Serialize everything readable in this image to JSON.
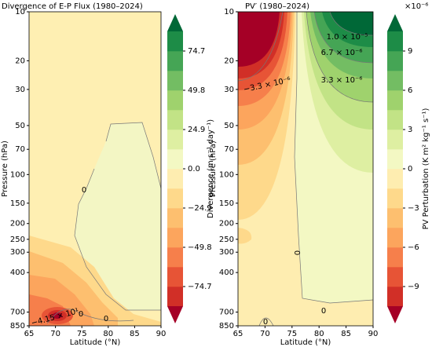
{
  "chart_data": [
    {
      "type": "contour",
      "title": "Divergence of E-P Flux (1980–2024)",
      "xlabel": "Latitude (°N)",
      "ylabel": "Pressure (hPa)",
      "xlim": [
        65,
        90
      ],
      "xticks": [
        65,
        70,
        75,
        80,
        85,
        90
      ],
      "ylim": [
        10,
        850
      ],
      "log_y": true,
      "invert_y": true,
      "yticks": [
        10,
        20,
        30,
        50,
        70,
        100,
        150,
        200,
        250,
        300,
        400,
        700,
        850
      ],
      "contour_labels": [
        "0",
        "−4.15 × 10¹",
        "0",
        "0"
      ],
      "colorbar": {
        "label": "Divergence (m s⁻¹ day⁻¹)",
        "lim": [
          -87.15,
          87.15
        ],
        "ticks": [
          {
            "value": 74.7,
            "label": "74.7"
          },
          {
            "value": 49.8,
            "label": "49.8"
          },
          {
            "value": 24.9,
            "label": "24.9"
          },
          {
            "value": 0,
            "label": "0.0"
          },
          {
            "value": -24.9,
            "label": "−24.9"
          },
          {
            "value": -49.8,
            "label": "−49.8"
          },
          {
            "value": -74.7,
            "label": "−74.7"
          }
        ],
        "colors": [
          "#d12f27",
          "#e75436",
          "#f67f4b",
          "#fca55d",
          "#fdbf6f",
          "#fed98b",
          "#feedb0",
          "#f3f8c3",
          "#deefa2",
          "#c2e386",
          "#9fd26d",
          "#73bd63",
          "#45a555",
          "#1d8c47"
        ],
        "extend_colors": [
          "#a50026",
          "#006837"
        ]
      }
    },
    {
      "type": "contour",
      "title": "PV′ (1980–2024)",
      "xlabel": "Latitude (°N)",
      "ylabel": "Pressure (hPa)",
      "xlim": [
        65,
        90
      ],
      "xticks": [
        65,
        70,
        75,
        80,
        85,
        90
      ],
      "ylim": [
        10,
        850
      ],
      "log_y": true,
      "invert_y": true,
      "yticks": [
        10,
        20,
        30,
        50,
        70,
        100,
        150,
        200,
        250,
        300,
        400,
        700,
        850
      ],
      "contour_labels": [
        "1.0 × 10⁻⁵",
        "6.7 × 10⁻⁶",
        "3.3 × 10⁻⁶",
        "−3.3 × 10⁻⁶",
        "0",
        "0",
        "0"
      ],
      "colorbar": {
        "label": "PV Perturbation (K m² kg⁻¹ s⁻¹)",
        "offset": "×10⁻⁶",
        "lim": [
          -10.5,
          10.5
        ],
        "ticks": [
          9,
          6,
          3,
          0,
          {
            "value": -3,
            "label": "−3"
          },
          {
            "value": -6,
            "label": "−6"
          },
          {
            "value": -9,
            "label": "−9"
          }
        ],
        "colors": [
          "#d12f27",
          "#e75436",
          "#f67f4b",
          "#fca55d",
          "#fdbf6f",
          "#fed98b",
          "#feedb0",
          "#f3f8c3",
          "#deefa2",
          "#c2e386",
          "#9fd26d",
          "#73bd63",
          "#45a555",
          "#1d8c47"
        ],
        "extend_colors": [
          "#a50026",
          "#006837"
        ]
      }
    }
  ]
}
